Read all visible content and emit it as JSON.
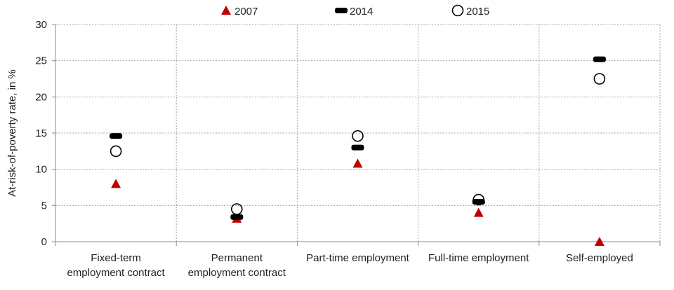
{
  "chart_data": {
    "type": "scatter",
    "ylabel": "At-risk-of-poverty rate, in %",
    "ylim": [
      0,
      30
    ],
    "yticks": [
      "0",
      "5",
      "10",
      "15",
      "20",
      "25",
      "30"
    ],
    "grid": "dotted vertical and horizontal",
    "legend_position": "top",
    "categories": [
      [
        "Fixed-term",
        "employment contract"
      ],
      [
        "Permanent",
        "employment contract"
      ],
      [
        "Part-time employment"
      ],
      [
        "Full-time employment"
      ],
      [
        "Self-employed"
      ]
    ],
    "series": [
      {
        "name": "2007",
        "marker": "triangle",
        "color": "#c00000",
        "values": [
          8.0,
          3.2,
          10.8,
          4.0,
          0.0
        ]
      },
      {
        "name": "2014",
        "marker": "dash",
        "color": "#000000",
        "values": [
          14.6,
          3.4,
          13.0,
          5.5,
          25.2
        ]
      },
      {
        "name": "2015",
        "marker": "open-circle",
        "color": "#000000",
        "values": [
          12.5,
          4.5,
          14.6,
          5.8,
          22.5
        ]
      }
    ]
  }
}
